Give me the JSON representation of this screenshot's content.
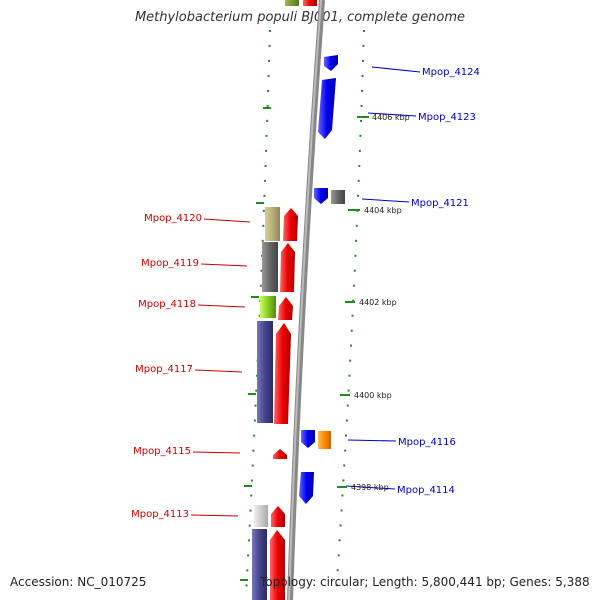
{
  "title": "Methylobacterium populi BJ001, complete genome",
  "footer": {
    "accession": "Accession: NC_010725",
    "topology": "Topology: circular; Length: 5,800,441 bp; Genes: 5,388"
  },
  "colors": {
    "forward": "#0000ee",
    "reverse": "#dd0000",
    "backbone": "#888888",
    "tick": "#228b22"
  },
  "forward_labels": [
    "Mpop_4124",
    "Mpop_4123",
    "Mpop_4121",
    "Mpop_4116",
    "Mpop_4114"
  ],
  "reverse_labels": [
    "Mpop_4120",
    "Mpop_4119",
    "Mpop_4118",
    "Mpop_4117",
    "Mpop_4115",
    "Mpop_4113"
  ],
  "ticks": [
    "4406 kbp",
    "4404 kbp",
    "4402 kbp",
    "4400 kbp",
    "4398 kbp"
  ]
}
